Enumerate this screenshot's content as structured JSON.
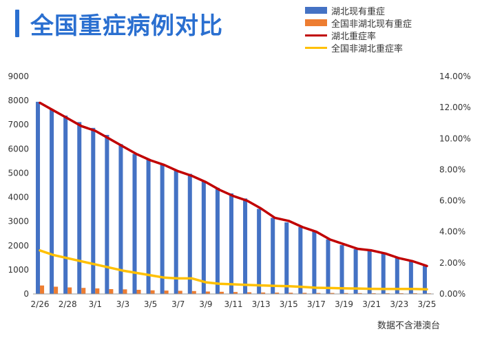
{
  "title": "全国重症病例对比",
  "source_note": "数据不含港澳台",
  "colors": {
    "title": "#2a6fd0",
    "hubei_bar": "#4472c4",
    "nonhubei_bar": "#ed7d31",
    "hubei_rate_line": "#c00000",
    "nonhubei_rate_line": "#ffc000",
    "axis": "#333333"
  },
  "chart_data": {
    "type": "bar",
    "title": "全国重症病例对比",
    "categories": [
      "2/26",
      "2/27",
      "2/28",
      "2/29",
      "3/1",
      "3/2",
      "3/3",
      "3/4",
      "3/5",
      "3/6",
      "3/7",
      "3/8",
      "3/9",
      "3/10",
      "3/11",
      "3/12",
      "3/13",
      "3/14",
      "3/15",
      "3/16",
      "3/17",
      "3/18",
      "3/19",
      "3/20",
      "3/21",
      "3/22",
      "3/23",
      "3/24",
      "3/25"
    ],
    "x_tick_labels": [
      "2/26",
      "2/28",
      "3/1",
      "3/3",
      "3/5",
      "3/7",
      "3/9",
      "3/11",
      "3/13",
      "3/15",
      "3/17",
      "3/19",
      "3/21",
      "3/23",
      "3/25"
    ],
    "series": [
      {
        "name": "湖北现有重症",
        "type": "bar",
        "axis": "left",
        "color": "#4472c4",
        "values": [
          7950,
          7650,
          7380,
          7110,
          6870,
          6580,
          6200,
          5790,
          5570,
          5360,
          5130,
          4970,
          4660,
          4390,
          4160,
          3950,
          3520,
          3150,
          2960,
          2770,
          2600,
          2260,
          2020,
          1850,
          1770,
          1690,
          1490,
          1380,
          1160
        ]
      },
      {
        "name": "全国非湖北现有重症",
        "type": "bar",
        "axis": "left",
        "color": "#ed7d31",
        "values": [
          350,
          300,
          270,
          250,
          230,
          200,
          190,
          170,
          150,
          140,
          130,
          120,
          100,
          90,
          80,
          70,
          60,
          55,
          50,
          45,
          40,
          40,
          35,
          35,
          30,
          30,
          30,
          30,
          25
        ]
      },
      {
        "name": "湖北重症率",
        "type": "line",
        "axis": "right",
        "color": "#c00000",
        "values": [
          12.3,
          11.8,
          11.3,
          10.8,
          10.5,
          10.0,
          9.5,
          9.0,
          8.6,
          8.3,
          7.9,
          7.6,
          7.2,
          6.7,
          6.3,
          6.0,
          5.5,
          4.9,
          4.7,
          4.3,
          4.0,
          3.5,
          3.2,
          2.9,
          2.8,
          2.6,
          2.3,
          2.1,
          1.8
        ]
      },
      {
        "name": "全国非湖北重症率",
        "type": "line",
        "axis": "right",
        "color": "#ffc000",
        "values": [
          2.8,
          2.5,
          2.3,
          2.1,
          1.9,
          1.7,
          1.5,
          1.35,
          1.2,
          1.05,
          1.0,
          1.0,
          0.75,
          0.65,
          0.62,
          0.58,
          0.55,
          0.52,
          0.5,
          0.45,
          0.4,
          0.38,
          0.36,
          0.35,
          0.33,
          0.32,
          0.32,
          0.32,
          0.3
        ]
      }
    ],
    "y_left": {
      "min": 0,
      "max": 9000,
      "ticks": [
        "0",
        "1000",
        "2000",
        "3000",
        "4000",
        "5000",
        "6000",
        "7000",
        "8000",
        "9000"
      ]
    },
    "y_right": {
      "min": 0,
      "max": 14,
      "ticks": [
        "0.00%",
        "2.00%",
        "4.00%",
        "6.00%",
        "8.00%",
        "10.00%",
        "12.00%",
        "14.00%"
      ]
    },
    "legend_position": "top-right",
    "grid": false
  }
}
